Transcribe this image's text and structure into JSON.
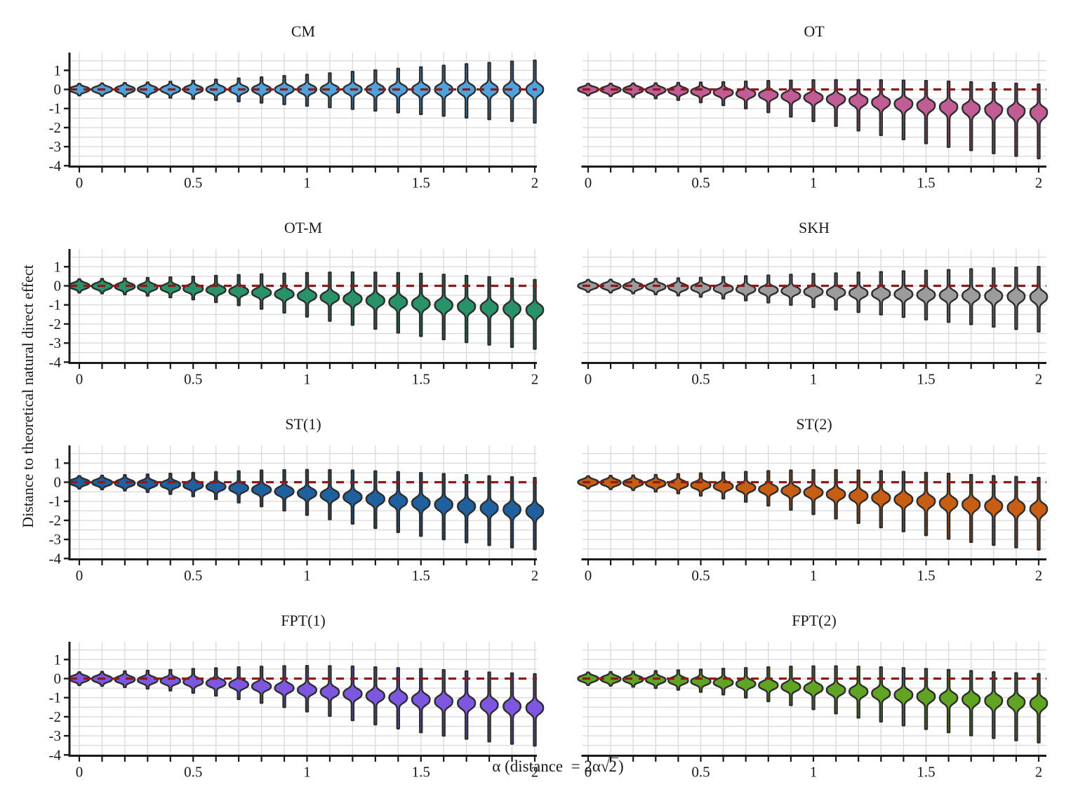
{
  "figure": {
    "ylabel": "Distance to theoretical natural direct effect",
    "xlabel_plain": "α (distance = 2α√2)",
    "xlabel_pre": "α (distance  = 2α",
    "xlabel_radical_sign": "√",
    "xlabel_radicand": "2",
    "xlabel_post": ")"
  },
  "colors": {
    "outline": "#2E2E2E",
    "axis": "#1A1A1A",
    "grid": "#DBDBDB",
    "background": "#FFFFFF",
    "ref_line": "#8B1A1A"
  },
  "chart_data": {
    "type": "violin",
    "layout": "4 rows x 2 columns, shared y scale, reference dashed line at y=0",
    "x": [
      0,
      0.1,
      0.2,
      0.3,
      0.4,
      0.5,
      0.6,
      0.7,
      0.8,
      0.9,
      1,
      1.1,
      1.2,
      1.3,
      1.4,
      1.5,
      1.6,
      1.7,
      1.8,
      1.9,
      2
    ],
    "x_tick_labels": [
      "0",
      "0.5",
      "1",
      "1.5",
      "2"
    ],
    "x_tick_index": [
      0,
      5,
      10,
      15,
      20
    ],
    "y_tick_labels": [
      "1",
      "0",
      "-1",
      "-2",
      "-3",
      "-4"
    ],
    "y_ticks": [
      1,
      0,
      -1,
      -2,
      -3,
      -4
    ],
    "ylim": [
      -4,
      1.9
    ],
    "grid": true,
    "reference_line": {
      "y": 0,
      "color": "#8B1A1A",
      "style": "dashed"
    },
    "panels": [
      {
        "title": "CM",
        "color": "#4EA2DE",
        "center": [
          0,
          0,
          0,
          0,
          0,
          0,
          0,
          0,
          0,
          0,
          0,
          0,
          0,
          0,
          0,
          0,
          0,
          0,
          0,
          0,
          0
        ],
        "upper": [
          0.3,
          0.32,
          0.34,
          0.37,
          0.41,
          0.46,
          0.52,
          0.58,
          0.64,
          0.71,
          0.78,
          0.85,
          0.93,
          1.01,
          1.09,
          1.17,
          1.25,
          1.33,
          1.4,
          1.47,
          1.52
        ],
        "lower": [
          -0.32,
          -0.34,
          -0.37,
          -0.4,
          -0.44,
          -0.5,
          -0.56,
          -0.63,
          -0.7,
          -0.78,
          -0.86,
          -0.94,
          -1.03,
          -1.12,
          -1.21,
          -1.3,
          -1.39,
          -1.48,
          -1.57,
          -1.66,
          -1.75
        ]
      },
      {
        "title": "OT",
        "color": "#C15C94",
        "center": [
          0,
          -0.01,
          -0.02,
          -0.04,
          -0.07,
          -0.11,
          -0.16,
          -0.22,
          -0.28,
          -0.35,
          -0.42,
          -0.5,
          -0.58,
          -0.66,
          -0.74,
          -0.82,
          -0.9,
          -0.97,
          -1.04,
          -1.11,
          -1.18
        ],
        "upper": [
          0.3,
          0.31,
          0.32,
          0.33,
          0.35,
          0.37,
          0.39,
          0.42,
          0.45,
          0.47,
          0.49,
          0.5,
          0.5,
          0.49,
          0.47,
          0.45,
          0.42,
          0.39,
          0.35,
          0.31,
          0.27
        ],
        "lower": [
          -0.32,
          -0.35,
          -0.4,
          -0.47,
          -0.56,
          -0.68,
          -0.83,
          -1.0,
          -1.2,
          -1.43,
          -1.67,
          -1.92,
          -2.16,
          -2.4,
          -2.62,
          -2.83,
          -3.02,
          -3.19,
          -3.35,
          -3.49,
          -3.62
        ]
      },
      {
        "title": "OT-M",
        "color": "#2A9268",
        "center": [
          0,
          -0.02,
          -0.04,
          -0.07,
          -0.11,
          -0.16,
          -0.22,
          -0.29,
          -0.36,
          -0.44,
          -0.52,
          -0.6,
          -0.69,
          -0.77,
          -0.85,
          -0.93,
          -1.01,
          -1.08,
          -1.14,
          -1.2,
          -1.25
        ],
        "upper": [
          0.35,
          0.37,
          0.39,
          0.42,
          0.45,
          0.49,
          0.53,
          0.57,
          0.61,
          0.65,
          0.68,
          0.7,
          0.71,
          0.7,
          0.68,
          0.64,
          0.59,
          0.53,
          0.46,
          0.39,
          0.32
        ],
        "lower": [
          -0.36,
          -0.4,
          -0.45,
          -0.52,
          -0.61,
          -0.72,
          -0.86,
          -1.02,
          -1.21,
          -1.41,
          -1.62,
          -1.84,
          -2.05,
          -2.26,
          -2.46,
          -2.64,
          -2.81,
          -2.96,
          -3.09,
          -3.21,
          -3.31
        ]
      },
      {
        "title": "SKH",
        "color": "#9C9C9C",
        "center": [
          0,
          -0.01,
          -0.03,
          -0.05,
          -0.08,
          -0.11,
          -0.15,
          -0.19,
          -0.23,
          -0.27,
          -0.31,
          -0.35,
          -0.38,
          -0.41,
          -0.44,
          -0.47,
          -0.49,
          -0.51,
          -0.53,
          -0.55,
          -0.57
        ],
        "upper": [
          0.32,
          0.33,
          0.35,
          0.37,
          0.4,
          0.43,
          0.47,
          0.51,
          0.55,
          0.59,
          0.63,
          0.66,
          0.7,
          0.73,
          0.77,
          0.8,
          0.84,
          0.88,
          0.92,
          0.96,
          1.0
        ],
        "lower": [
          -0.33,
          -0.36,
          -0.4,
          -0.45,
          -0.51,
          -0.58,
          -0.67,
          -0.77,
          -0.88,
          -1.0,
          -1.12,
          -1.25,
          -1.38,
          -1.51,
          -1.64,
          -1.77,
          -1.9,
          -2.02,
          -2.15,
          -2.27,
          -2.4
        ]
      },
      {
        "title": "ST(1)",
        "color": "#1F609F",
        "center": [
          0,
          -0.02,
          -0.05,
          -0.08,
          -0.12,
          -0.17,
          -0.24,
          -0.31,
          -0.4,
          -0.49,
          -0.58,
          -0.68,
          -0.78,
          -0.88,
          -0.98,
          -1.08,
          -1.17,
          -1.26,
          -1.35,
          -1.43,
          -1.51
        ],
        "upper": [
          0.33,
          0.35,
          0.38,
          0.41,
          0.45,
          0.5,
          0.54,
          0.58,
          0.62,
          0.64,
          0.65,
          0.64,
          0.62,
          0.58,
          0.54,
          0.49,
          0.44,
          0.38,
          0.32,
          0.27,
          0.23
        ],
        "lower": [
          -0.34,
          -0.38,
          -0.44,
          -0.52,
          -0.62,
          -0.74,
          -0.89,
          -1.07,
          -1.27,
          -1.49,
          -1.72,
          -1.95,
          -2.18,
          -2.41,
          -2.62,
          -2.82,
          -3.0,
          -3.16,
          -3.3,
          -3.42,
          -3.52
        ]
      },
      {
        "title": "ST(2)",
        "color": "#C85E14",
        "center": [
          0,
          -0.02,
          -0.04,
          -0.07,
          -0.11,
          -0.16,
          -0.22,
          -0.29,
          -0.37,
          -0.45,
          -0.54,
          -0.63,
          -0.72,
          -0.81,
          -0.9,
          -0.99,
          -1.08,
          -1.16,
          -1.24,
          -1.32,
          -1.4
        ],
        "upper": [
          0.32,
          0.34,
          0.36,
          0.39,
          0.43,
          0.47,
          0.51,
          0.55,
          0.59,
          0.62,
          0.64,
          0.64,
          0.62,
          0.59,
          0.55,
          0.5,
          0.45,
          0.39,
          0.33,
          0.28,
          0.23
        ],
        "lower": [
          -0.33,
          -0.37,
          -0.42,
          -0.5,
          -0.59,
          -0.71,
          -0.86,
          -1.03,
          -1.23,
          -1.45,
          -1.68,
          -1.91,
          -2.14,
          -2.37,
          -2.58,
          -2.78,
          -2.97,
          -3.14,
          -3.29,
          -3.42,
          -3.54
        ]
      },
      {
        "title": "FPT(1)",
        "color": "#7E57E0",
        "center": [
          0,
          -0.02,
          -0.05,
          -0.08,
          -0.12,
          -0.17,
          -0.24,
          -0.32,
          -0.41,
          -0.5,
          -0.6,
          -0.7,
          -0.8,
          -0.9,
          -1.0,
          -1.1,
          -1.19,
          -1.28,
          -1.37,
          -1.45,
          -1.53
        ],
        "upper": [
          0.34,
          0.36,
          0.39,
          0.42,
          0.46,
          0.51,
          0.55,
          0.6,
          0.63,
          0.66,
          0.67,
          0.66,
          0.64,
          0.6,
          0.56,
          0.51,
          0.45,
          0.39,
          0.33,
          0.28,
          0.24
        ],
        "lower": [
          -0.35,
          -0.39,
          -0.45,
          -0.53,
          -0.63,
          -0.75,
          -0.9,
          -1.08,
          -1.28,
          -1.5,
          -1.73,
          -1.96,
          -2.19,
          -2.41,
          -2.62,
          -2.82,
          -3.0,
          -3.16,
          -3.3,
          -3.42,
          -3.52
        ]
      },
      {
        "title": "FPT(2)",
        "color": "#61A322",
        "center": [
          0,
          -0.02,
          -0.04,
          -0.07,
          -0.11,
          -0.15,
          -0.21,
          -0.28,
          -0.35,
          -0.43,
          -0.51,
          -0.6,
          -0.68,
          -0.77,
          -0.85,
          -0.93,
          -1.01,
          -1.08,
          -1.15,
          -1.22,
          -1.28
        ],
        "upper": [
          0.33,
          0.35,
          0.37,
          0.4,
          0.44,
          0.48,
          0.52,
          0.56,
          0.6,
          0.63,
          0.65,
          0.65,
          0.63,
          0.6,
          0.56,
          0.51,
          0.46,
          0.4,
          0.34,
          0.29,
          0.25
        ],
        "lower": [
          -0.34,
          -0.38,
          -0.43,
          -0.5,
          -0.59,
          -0.7,
          -0.84,
          -1.0,
          -1.19,
          -1.4,
          -1.61,
          -1.83,
          -2.05,
          -2.26,
          -2.46,
          -2.65,
          -2.82,
          -2.98,
          -3.12,
          -3.24,
          -3.35
        ]
      }
    ]
  }
}
